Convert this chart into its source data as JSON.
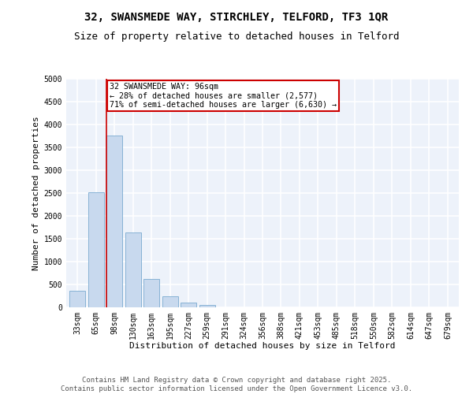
{
  "title_line1": "32, SWANSMEDE WAY, STIRCHLEY, TELFORD, TF3 1QR",
  "title_line2": "Size of property relative to detached houses in Telford",
  "xlabel": "Distribution of detached houses by size in Telford",
  "ylabel": "Number of detached properties",
  "categories": [
    "33sqm",
    "65sqm",
    "98sqm",
    "130sqm",
    "163sqm",
    "195sqm",
    "227sqm",
    "259sqm",
    "291sqm",
    "324sqm",
    "356sqm",
    "388sqm",
    "421sqm",
    "453sqm",
    "485sqm",
    "518sqm",
    "550sqm",
    "582sqm",
    "614sqm",
    "647sqm",
    "679sqm"
  ],
  "values": [
    370,
    2520,
    3760,
    1640,
    620,
    240,
    100,
    60,
    0,
    0,
    0,
    0,
    0,
    0,
    0,
    0,
    0,
    0,
    0,
    0,
    0
  ],
  "bar_color": "#c8d9ee",
  "bar_edge_color": "#7aaad0",
  "vline_color": "#cc0000",
  "annotation_text_line1": "32 SWANSMEDE WAY: 96sqm",
  "annotation_text_line2": "← 28% of detached houses are smaller (2,577)",
  "annotation_text_line3": "71% of semi-detached houses are larger (6,630) →",
  "ylim": [
    0,
    5000
  ],
  "yticks": [
    0,
    500,
    1000,
    1500,
    2000,
    2500,
    3000,
    3500,
    4000,
    4500,
    5000
  ],
  "background_color": "#edf2fa",
  "grid_color": "#ffffff",
  "title_fontsize": 10,
  "subtitle_fontsize": 9,
  "axis_label_fontsize": 8,
  "tick_fontsize": 7,
  "footer_fontsize": 6.5,
  "footer_line1": "Contains HM Land Registry data © Crown copyright and database right 2025.",
  "footer_line2": "Contains public sector information licensed under the Open Government Licence v3.0."
}
